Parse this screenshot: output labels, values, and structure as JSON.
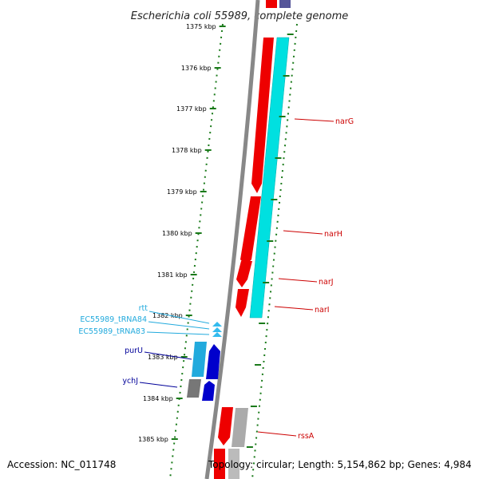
{
  "title": "Escherichia coli 55989, complete genome",
  "accession": "Accession: NC_011748",
  "summary": "Topology: circular; Length: 5,154,862 bp; Genes: 4,984",
  "colors": {
    "forward_gene": "#ee0000",
    "reverse_gene": "#00e0e0",
    "trna": "#33bbee",
    "blue_gene": "#0000cc",
    "gray_gene": "#777777",
    "backbone": "#888888",
    "ticks": "#1a7a1a"
  },
  "kbp_labels": [
    "1375 kbp",
    "1376 kbp",
    "1377 kbp",
    "1378 kbp",
    "1379 kbp",
    "1380 kbp",
    "1381 kbp",
    "1382 kbp",
    "1383 kbp",
    "1384 kbp",
    "1385 kbp"
  ],
  "gene_labels": [
    {
      "name": "narG",
      "color": "#cc0000"
    },
    {
      "name": "narH",
      "color": "#cc0000"
    },
    {
      "name": "narJ",
      "color": "#cc0000"
    },
    {
      "name": "narI",
      "color": "#cc0000"
    },
    {
      "name": "rssA",
      "color": "#cc0000"
    },
    {
      "name": "rtt",
      "color": "#22aadd"
    },
    {
      "name": "EC55989_tRNA84",
      "color": "#22aadd"
    },
    {
      "name": "EC55989_tRNA83",
      "color": "#22aadd"
    },
    {
      "name": "purU",
      "color": "#000099"
    },
    {
      "name": "ychJ",
      "color": "#000099"
    }
  ]
}
